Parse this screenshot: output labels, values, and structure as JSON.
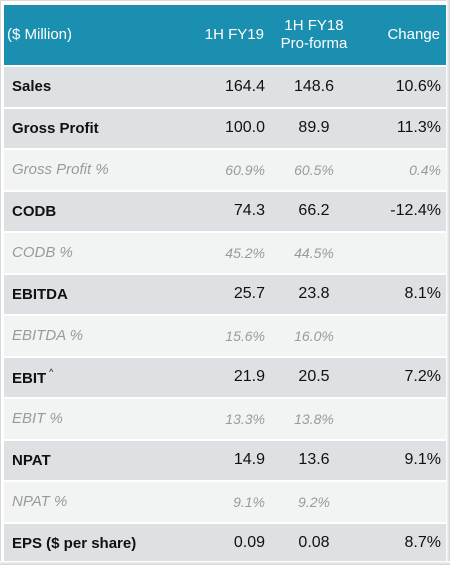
{
  "header": {
    "label": "($ Million)",
    "col1": "1H FY19",
    "col2_line1": "1H FY18",
    "col2_line2": "Pro-forma",
    "col3": "Change"
  },
  "rows": [
    {
      "label": "Sales",
      "fy19": "164.4",
      "fy18": "148.6",
      "change": "10.6%"
    },
    {
      "label": "Gross Profit",
      "fy19": "100.0",
      "fy18": "89.9",
      "change": "11.3%"
    },
    {
      "label": "Gross Profit %",
      "fy19": "60.9%",
      "fy18": "60.5%",
      "change": "0.4%"
    },
    {
      "label": "CODB",
      "fy19": "74.3",
      "fy18": "66.2",
      "change": "-12.4%"
    },
    {
      "label": "CODB %",
      "fy19": "45.2%",
      "fy18": "44.5%",
      "change": ""
    },
    {
      "label": "EBITDA",
      "fy19": "25.7",
      "fy18": "23.8",
      "change": "8.1%"
    },
    {
      "label": "EBITDA %",
      "fy19": "15.6%",
      "fy18": "16.0%",
      "change": ""
    },
    {
      "label": "EBIT",
      "mark": "^",
      "fy19": "21.9",
      "fy18": "20.5",
      "change": "7.2%"
    },
    {
      "label": "EBIT %",
      "fy19": "13.3%",
      "fy18": "13.8%",
      "change": ""
    },
    {
      "label": "NPAT",
      "fy19": "14.9",
      "fy18": "13.6",
      "change": "9.1%"
    },
    {
      "label": "NPAT %",
      "fy19": "9.1%",
      "fy18": "9.2%",
      "change": ""
    },
    {
      "label": "EPS ($ per share)",
      "fy19": "0.09",
      "fy18": "0.08",
      "change": "8.7%"
    }
  ]
}
